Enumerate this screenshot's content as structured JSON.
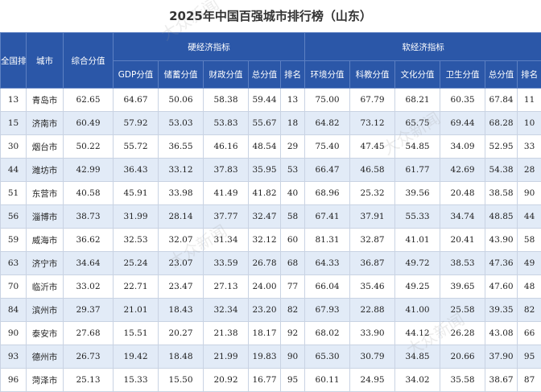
{
  "title": "2025年中国百强城市排行榜（山东）",
  "header": {
    "national_rank": "全国排名",
    "city": "城市",
    "composite": "综合分值",
    "hard_group": "硬经济指标",
    "soft_group": "软经济指标",
    "hard_cols": [
      "GDP分值",
      "储蓄分值",
      "财政分值",
      "总分值",
      "排名"
    ],
    "soft_cols": [
      "环境分值",
      "科教分值",
      "文化分值",
      "卫生分值",
      "总分值",
      "排名"
    ]
  },
  "watermark": "大众新闻",
  "rows": [
    [
      "13",
      "青岛市",
      "62.65",
      "64.67",
      "50.06",
      "58.38",
      "59.44",
      "13",
      "75.00",
      "67.79",
      "68.21",
      "60.35",
      "67.84",
      "11"
    ],
    [
      "15",
      "济南市",
      "60.49",
      "57.92",
      "53.03",
      "53.83",
      "55.67",
      "18",
      "64.82",
      "73.12",
      "65.75",
      "69.44",
      "68.28",
      "10"
    ],
    [
      "30",
      "烟台市",
      "50.22",
      "55.72",
      "36.55",
      "46.16",
      "48.54",
      "29",
      "75.40",
      "47.45",
      "54.85",
      "34.09",
      "52.95",
      "33"
    ],
    [
      "44",
      "潍坊市",
      "42.99",
      "36.43",
      "33.12",
      "37.83",
      "35.95",
      "53",
      "66.47",
      "46.58",
      "61.77",
      "42.69",
      "54.38",
      "28"
    ],
    [
      "51",
      "东营市",
      "40.58",
      "45.91",
      "33.98",
      "41.49",
      "41.82",
      "40",
      "68.96",
      "25.32",
      "39.56",
      "20.48",
      "38.58",
      "90"
    ],
    [
      "56",
      "淄博市",
      "38.73",
      "31.99",
      "28.14",
      "37.77",
      "32.47",
      "58",
      "67.41",
      "37.91",
      "55.33",
      "34.74",
      "48.85",
      "44"
    ],
    [
      "59",
      "威海市",
      "36.62",
      "32.53",
      "32.07",
      "31.34",
      "32.12",
      "60",
      "81.31",
      "32.87",
      "41.01",
      "20.41",
      "43.90",
      "58"
    ],
    [
      "63",
      "济宁市",
      "34.64",
      "25.24",
      "23.07",
      "33.59",
      "26.78",
      "68",
      "64.33",
      "36.87",
      "49.72",
      "38.53",
      "47.36",
      "49"
    ],
    [
      "70",
      "临沂市",
      "33.02",
      "22.71",
      "23.47",
      "27.13",
      "24.00",
      "77",
      "66.04",
      "35.46",
      "49.25",
      "39.65",
      "47.60",
      "48"
    ],
    [
      "84",
      "滨州市",
      "29.37",
      "21.01",
      "18.43",
      "32.34",
      "23.20",
      "82",
      "67.93",
      "22.88",
      "41.00",
      "25.58",
      "39.35",
      "82"
    ],
    [
      "90",
      "泰安市",
      "27.68",
      "15.51",
      "20.27",
      "21.38",
      "18.17",
      "92",
      "68.02",
      "33.90",
      "44.12",
      "26.28",
      "43.08",
      "66"
    ],
    [
      "93",
      "德州市",
      "26.73",
      "19.42",
      "18.48",
      "21.99",
      "19.83",
      "90",
      "65.30",
      "30.79",
      "34.85",
      "20.66",
      "37.90",
      "95"
    ],
    [
      "96",
      "菏泽市",
      "25.13",
      "15.33",
      "15.50",
      "20.92",
      "16.77",
      "95",
      "60.11",
      "24.95",
      "34.02",
      "35.58",
      "38.67",
      "87"
    ]
  ]
}
